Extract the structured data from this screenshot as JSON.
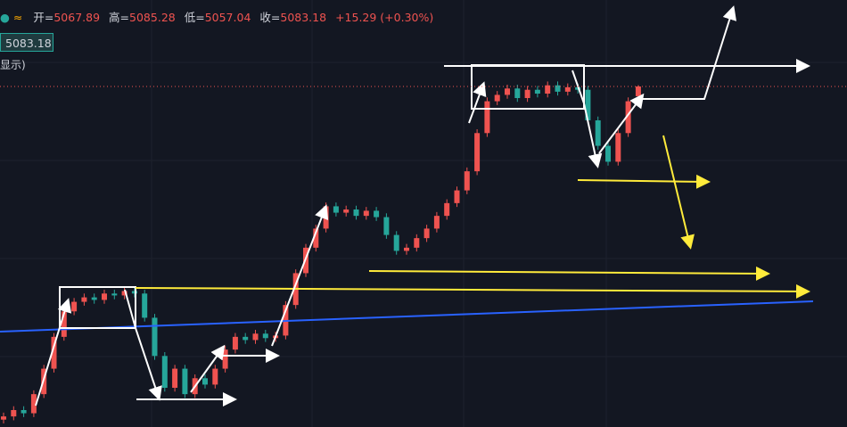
{
  "header": {
    "ohlc": [
      {
        "label": "开=",
        "value": "5067.89"
      },
      {
        "label": "高=",
        "value": "5085.28"
      },
      {
        "label": "低=",
        "value": "5057.04"
      },
      {
        "label": "收=",
        "value": "5083.18"
      }
    ],
    "change": "+15.29 (+0.30%)",
    "price_tag": "5083.18",
    "side_note": "显示)"
  },
  "chart_data": {
    "type": "candlestick",
    "up_color": "#ef5350",
    "down_color": "#26a69a",
    "ylim": [
      4547,
      5121
    ],
    "open": [
      4560,
      4565,
      4575,
      4570,
      4600,
      4640,
      4690,
      4730,
      4745,
      4752,
      4748,
      4758,
      4755,
      4762,
      4758,
      4720,
      4660,
      4610,
      4640,
      4600,
      4625,
      4615,
      4640,
      4670,
      4690,
      4685,
      4695,
      4688,
      4692,
      4740,
      4790,
      4830,
      4860,
      4895,
      4885,
      4890,
      4880,
      4888,
      4878,
      4850,
      4825,
      4830,
      4845,
      4860,
      4880,
      4900,
      4920,
      4950,
      5010,
      5060,
      5070,
      5080,
      5065,
      5078,
      5072,
      5085,
      5075,
      5082,
      5078,
      5030,
      4990,
      4965,
      5010,
      5067.89
    ],
    "high": [
      4571,
      4581,
      4581,
      4606,
      4646,
      4696,
      4736,
      4751,
      4758,
      4758,
      4764,
      4764,
      4768,
      4768,
      4764,
      4726,
      4666,
      4646,
      4646,
      4631,
      4631,
      4646,
      4676,
      4696,
      4696,
      4701,
      4701,
      4698,
      4746,
      4796,
      4836,
      4866,
      4901,
      4901,
      4896,
      4896,
      4894,
      4894,
      4884,
      4856,
      4836,
      4851,
      4866,
      4886,
      4906,
      4926,
      4956,
      5016,
      5066,
      5076,
      5086,
      5086,
      5084,
      5084,
      5091,
      5091,
      5088,
      5088,
      5084,
      5036,
      4996,
      5016,
      5066,
      5085.28
    ],
    "low": [
      4554,
      4559,
      4564,
      4564,
      4594,
      4634,
      4684,
      4724,
      4739,
      4742,
      4742,
      4749,
      4749,
      4752,
      4714,
      4654,
      4604,
      4604,
      4594,
      4594,
      4609,
      4609,
      4634,
      4664,
      4679,
      4679,
      4682,
      4682,
      4686,
      4734,
      4784,
      4824,
      4854,
      4879,
      4879,
      4874,
      4874,
      4872,
      4844,
      4819,
      4819,
      4824,
      4839,
      4854,
      4874,
      4894,
      4914,
      4944,
      5004,
      5054,
      5064,
      5059,
      5059,
      5066,
      5066,
      5069,
      5069,
      5072,
      5024,
      4984,
      4959,
      4959,
      5004,
      5057.04
    ],
    "close": [
      4565,
      4575,
      4570,
      4600,
      4640,
      4690,
      4730,
      4745,
      4752,
      4748,
      4758,
      4755,
      4762,
      4758,
      4720,
      4660,
      4610,
      4640,
      4600,
      4625,
      4615,
      4640,
      4670,
      4690,
      4685,
      4695,
      4688,
      4692,
      4740,
      4790,
      4830,
      4860,
      4895,
      4885,
      4890,
      4880,
      4888,
      4878,
      4850,
      4825,
      4830,
      4845,
      4860,
      4880,
      4900,
      4920,
      4950,
      5010,
      5060,
      5070,
      5080,
      5065,
      5078,
      5072,
      5085,
      5075,
      5082,
      5078,
      5030,
      4990,
      4965,
      5010,
      5060,
      5083.18
    ]
  }
}
